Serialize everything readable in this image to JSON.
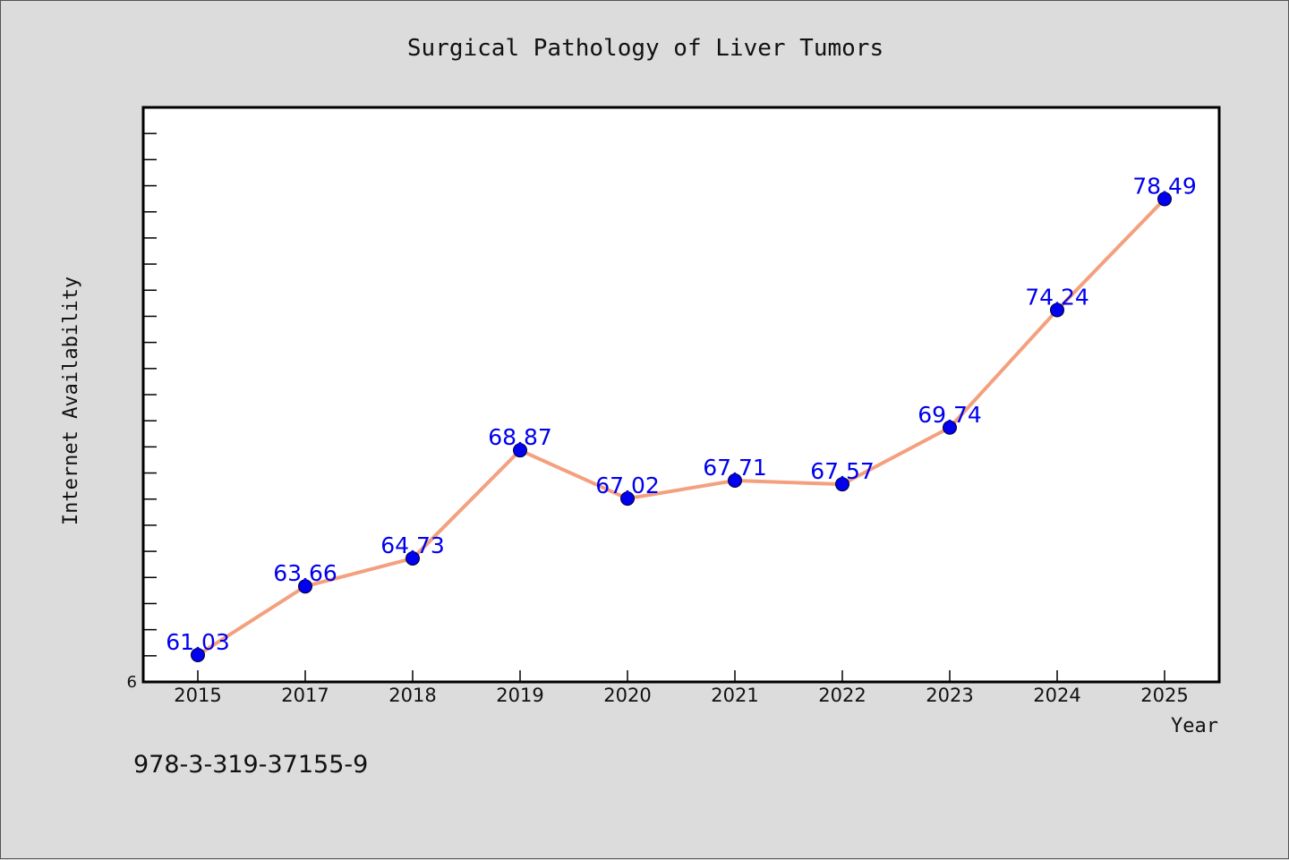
{
  "chart_data": {
    "type": "line",
    "title": "Surgical Pathology of Liver Tumors",
    "xlabel": "Year",
    "ylabel": "Internet Availability",
    "categories": [
      "2015",
      "2017",
      "2018",
      "2019",
      "2020",
      "2021",
      "2022",
      "2023",
      "2024",
      "2025"
    ],
    "values": [
      61.03,
      63.66,
      64.73,
      68.87,
      67.02,
      67.71,
      67.57,
      69.74,
      74.24,
      78.49
    ],
    "data_labels": [
      "61.03",
      "63.66",
      "64.73",
      "68.87",
      "67.02",
      "67.71",
      "67.57",
      "69.74",
      "74.24",
      "78.49"
    ],
    "y_tick_labels": [
      "6"
    ],
    "ylim": [
      60,
      82
    ],
    "grid": false,
    "legend": "none",
    "line_color": "#f4a07e",
    "marker_color": "#0000ee",
    "label_color": "#0000ee"
  },
  "footer": {
    "isbn": "978-3-319-37155-9"
  }
}
